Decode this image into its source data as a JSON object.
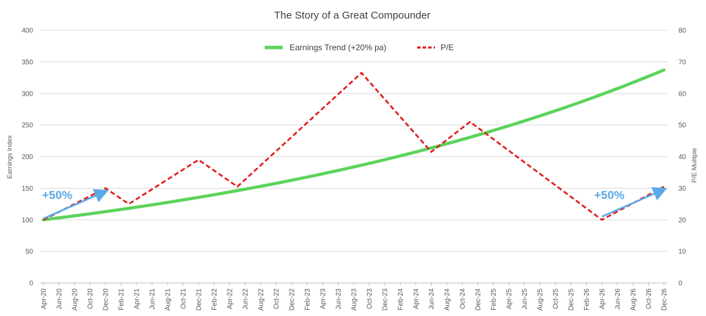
{
  "chart_data": {
    "type": "line",
    "title": "The Story of a Great Compounder",
    "y_left_label": "Earnings Index",
    "y_right_label": "P/E Multiple",
    "y_left_ticks": [
      "0",
      "50",
      "100",
      "150",
      "200",
      "250",
      "300",
      "350",
      "400"
    ],
    "y_right_ticks": [
      "0",
      "10",
      "20",
      "30",
      "40",
      "50",
      "60",
      "70",
      "80"
    ],
    "ylim_left": [
      0,
      400
    ],
    "ylim_right": [
      0,
      80
    ],
    "x_tick_labels": [
      "Apr-20",
      "Jun-20",
      "Aug-20",
      "Oct-20",
      "Dec-20",
      "Feb-21",
      "Apr-21",
      "Jun-21",
      "Aug-21",
      "Oct-21",
      "Dec-21",
      "Feb-22",
      "Apr-22",
      "Jun-22",
      "Aug-22",
      "Oct-22",
      "Dec-22",
      "Feb-23",
      "Apr-23",
      "Jun-23",
      "Aug-23",
      "Oct-23",
      "Dec-23",
      "Feb-24",
      "Apr-24",
      "Jun-24",
      "Aug-24",
      "Oct-24",
      "Dec-24",
      "Feb-25",
      "Apr-25",
      "Jun-25",
      "Aug-25",
      "Oct-25",
      "Dec-25",
      "Feb-26",
      "Apr-26",
      "Jun-26",
      "Aug-26",
      "Oct-26",
      "Dec-26"
    ],
    "series": [
      {
        "name": "Earnings Trend (+20% pa)",
        "axis": "left",
        "color": "#5BD35B",
        "style": "solid",
        "growth_rate_pa": 0.2,
        "start_month": "Apr-20",
        "end_month": "Dec-26",
        "start_value": 100,
        "end_value": 342
      },
      {
        "name": "P/E",
        "axis": "right",
        "color": "#E31A1A",
        "style": "dashed",
        "points": [
          {
            "x": "Apr-20",
            "y": 20
          },
          {
            "x": "Dec-20",
            "y": 30
          },
          {
            "x": "Mar-21",
            "y": 25
          },
          {
            "x": "Dec-21",
            "y": 39
          },
          {
            "x": "May-22",
            "y": 30.5
          },
          {
            "x": "Sep-23",
            "y": 66.5
          },
          {
            "x": "Jun-24",
            "y": 41.5
          },
          {
            "x": "Nov-24",
            "y": 51
          },
          {
            "x": "Apr-26",
            "y": 20
          },
          {
            "x": "Dec-26",
            "y": 30.5
          }
        ]
      }
    ],
    "annotations": [
      {
        "text": "+50%",
        "color": "#5BA9E8"
      },
      {
        "text": "+50%",
        "color": "#5BA9E8"
      }
    ],
    "legend_position": "top-center",
    "grid": true
  }
}
